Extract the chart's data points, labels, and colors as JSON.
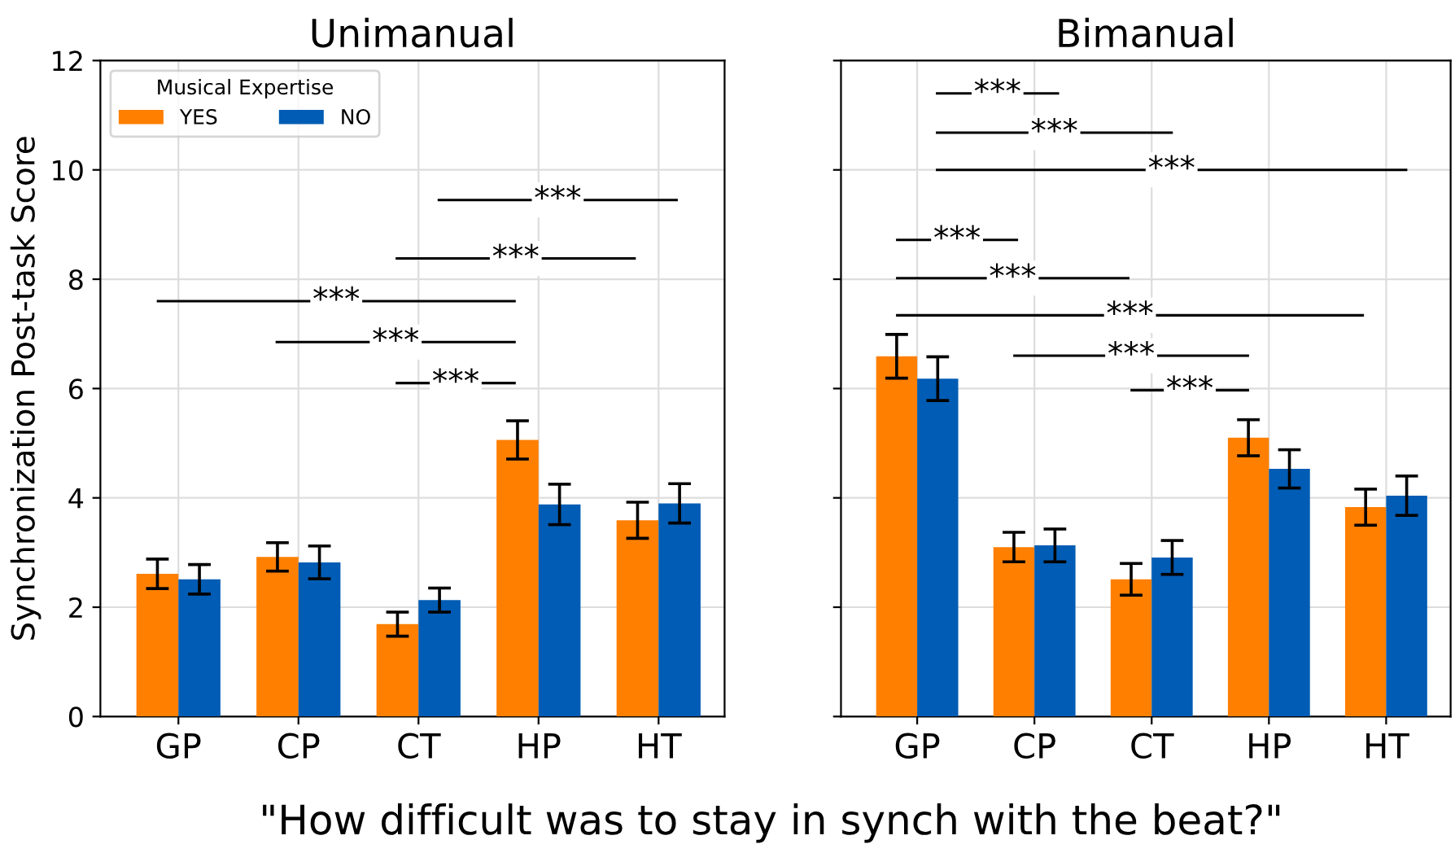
{
  "chart_data": [
    {
      "type": "bar",
      "title": "Unimanual",
      "ylabel": "Synchronization Post-task Score",
      "legend_title": "Musical Expertise",
      "legend": "top left",
      "grid": true,
      "categories": [
        "GP",
        "CP",
        "CT",
        "HP",
        "HT"
      ],
      "ylim": [
        0,
        12
      ],
      "yticks": [
        0,
        2,
        4,
        6,
        8,
        10,
        12
      ],
      "series": [
        {
          "name": "YES",
          "color": "#ff7f00",
          "values": [
            2.61,
            2.92,
            1.69,
            5.06,
            3.59
          ],
          "errors": [
            0.27,
            0.26,
            0.22,
            0.35,
            0.33
          ]
        },
        {
          "name": "NO",
          "color": "#005cb4",
          "values": [
            2.51,
            2.82,
            2.13,
            3.88,
            3.9
          ],
          "errors": [
            0.27,
            0.3,
            0.22,
            0.37,
            0.36
          ]
        }
      ],
      "annotations": [
        "***",
        "***",
        "***",
        "***",
        "***",
        "\"How difficult was to stay in synch with the beat?\""
      ]
    },
    {
      "type": "bar",
      "title": "Bimanual",
      "grid": true,
      "tick_labels": "x",
      "categories": [
        "GP",
        "CP",
        "CT",
        "HP",
        "HT"
      ],
      "ylim": [
        0,
        12
      ],
      "yticks": [
        0,
        2,
        4,
        6,
        8,
        10,
        12
      ],
      "series": [
        {
          "color": "#ff7f00",
          "values": [
            6.59,
            3.1,
            2.51,
            5.1,
            3.83
          ],
          "errors": [
            0.4,
            0.27,
            0.29,
            0.33,
            0.33
          ]
        },
        {
          "color": "#005cb4",
          "values": [
            6.18,
            3.13,
            2.91,
            4.53,
            4.04
          ],
          "errors": [
            0.4,
            0.3,
            0.31,
            0.35,
            0.36
          ]
        }
      ],
      "annotations": [
        "***",
        "***",
        "***",
        "***",
        "***",
        "***",
        "***",
        "***"
      ]
    }
  ]
}
